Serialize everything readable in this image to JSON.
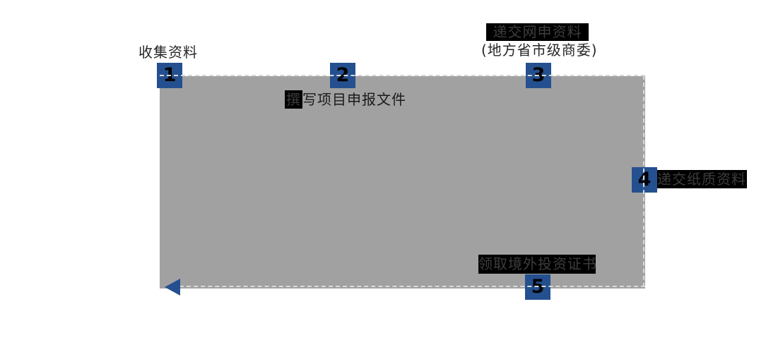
{
  "diagram": {
    "type": "process-flow",
    "background_color": "#ffffff",
    "panel_color": "#A1A1A1",
    "step_badge_color": "#24508F",
    "highlight_color": "#000000",
    "highlight_text_color": "#3d3d3d",
    "text_color": "#262626",
    "dash_color": "#d9d9d9",
    "end_marker": "left-arrow",
    "steps": [
      {
        "num": "1",
        "label": "收集资料",
        "label_position": "above",
        "highlighted": false
      },
      {
        "num": "2",
        "label": "撰写项目申报文件",
        "head": "撰",
        "tail": "写项目申报文件",
        "label_position": "below",
        "highlighted": "first-char"
      },
      {
        "num": "3",
        "label": "递交网申资料",
        "sublabel": "(地方省市级商委)",
        "label_position": "above",
        "highlighted": true
      },
      {
        "num": "4",
        "label": "递交纸质资料",
        "label_position": "right",
        "highlighted": true
      },
      {
        "num": "5",
        "label": "领取境外投资证书",
        "label_position": "above",
        "highlighted": true
      }
    ]
  }
}
